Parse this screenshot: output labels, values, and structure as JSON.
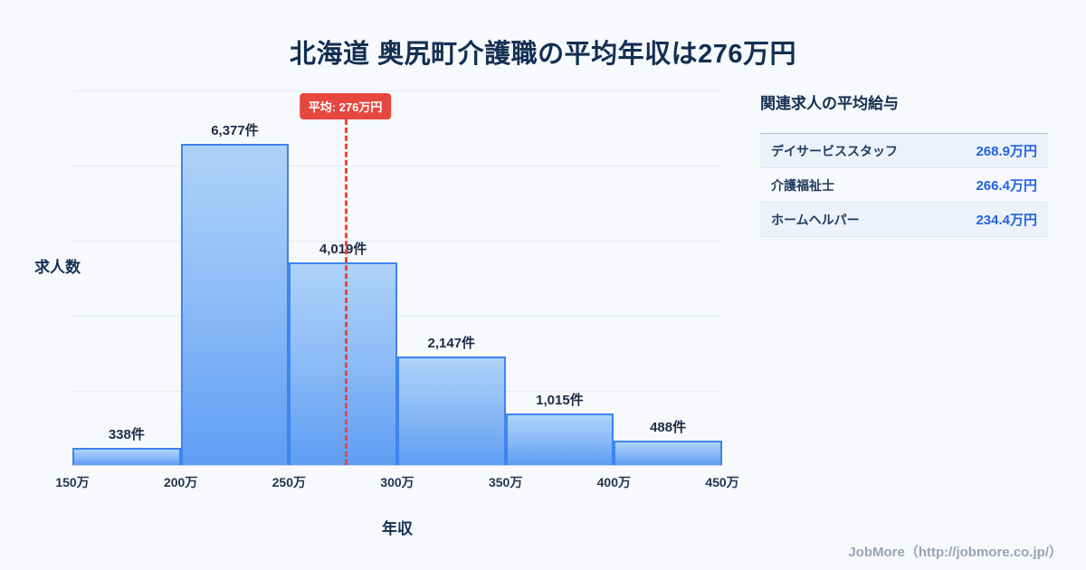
{
  "title": "北海道 奥尻町介護職の平均年収は276万円",
  "chart_data": {
    "type": "bar",
    "title": "北海道 奥尻町介護職の平均年収は276万円",
    "categories": [
      "150万",
      "200万",
      "250万",
      "300万",
      "350万",
      "400万",
      "450万"
    ],
    "values": [
      338,
      6377,
      4019,
      2147,
      1015,
      488
    ],
    "labels": [
      "338件",
      "6,377件",
      "4,019件",
      "2,147件",
      "1,015件",
      "488件"
    ],
    "xlabel": "年収",
    "ylabel": "求人数",
    "xrange": [
      150,
      450
    ],
    "grid": true,
    "average": {
      "value": 276,
      "label": "平均: 276万円"
    }
  },
  "side_panel": {
    "title": "関連求人の平均給与",
    "rows": [
      {
        "job": "デイサービススタッフ",
        "salary": "268.9万円"
      },
      {
        "job": "介護福祉士",
        "salary": "266.4万円"
      },
      {
        "job": "ホームヘルパー",
        "salary": "234.4万円"
      }
    ]
  },
  "footer": {
    "credit": "JobMore（http://jobmore.co.jp/）"
  },
  "colors": {
    "background": "#f7f9fd",
    "title_navy": "#132f52",
    "bar_top": "#aed2f9",
    "bar_bottom": "#5f9df4",
    "bar_border": "#3f84f0",
    "average_red": "#e8473f",
    "salary_blue": "#2163e0",
    "footer_gray": "#98a4b5"
  }
}
